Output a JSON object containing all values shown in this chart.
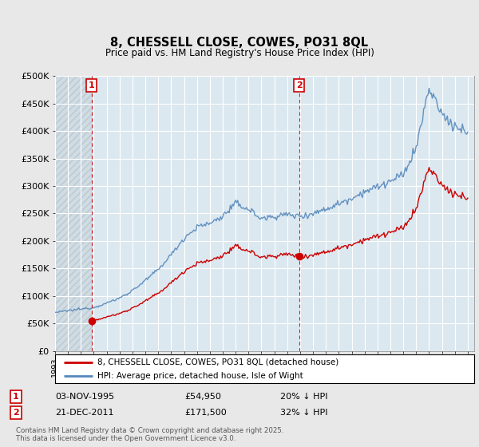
{
  "title": "8, CHESSELL CLOSE, COWES, PO31 8QL",
  "subtitle": "Price paid vs. HM Land Registry's House Price Index (HPI)",
  "red_label": "8, CHESSELL CLOSE, COWES, PO31 8QL (detached house)",
  "blue_label": "HPI: Average price, detached house, Isle of Wight",
  "footer": "Contains HM Land Registry data © Crown copyright and database right 2025.\nThis data is licensed under the Open Government Licence v3.0.",
  "transactions": [
    {
      "label": "1",
      "date": "03-NOV-1995",
      "price": 54950,
      "note": "20% ↓ HPI"
    },
    {
      "label": "2",
      "date": "21-DEC-2011",
      "price": 171500,
      "note": "32% ↓ HPI"
    }
  ],
  "ylim": [
    0,
    500000
  ],
  "yticks": [
    0,
    50000,
    100000,
    150000,
    200000,
    250000,
    300000,
    350000,
    400000,
    450000,
    500000
  ],
  "ytick_labels": [
    "£0",
    "£50K",
    "£100K",
    "£150K",
    "£200K",
    "£250K",
    "£300K",
    "£350K",
    "£400K",
    "£450K",
    "£500K"
  ],
  "background_color": "#e8e8e8",
  "plot_bg_color": "#dce8f0",
  "red_color": "#cc0000",
  "blue_color": "#5588bb",
  "grid_color": "#ffffff",
  "vline_color": "#cc0000",
  "hatch_color": "#c0c8d0"
}
